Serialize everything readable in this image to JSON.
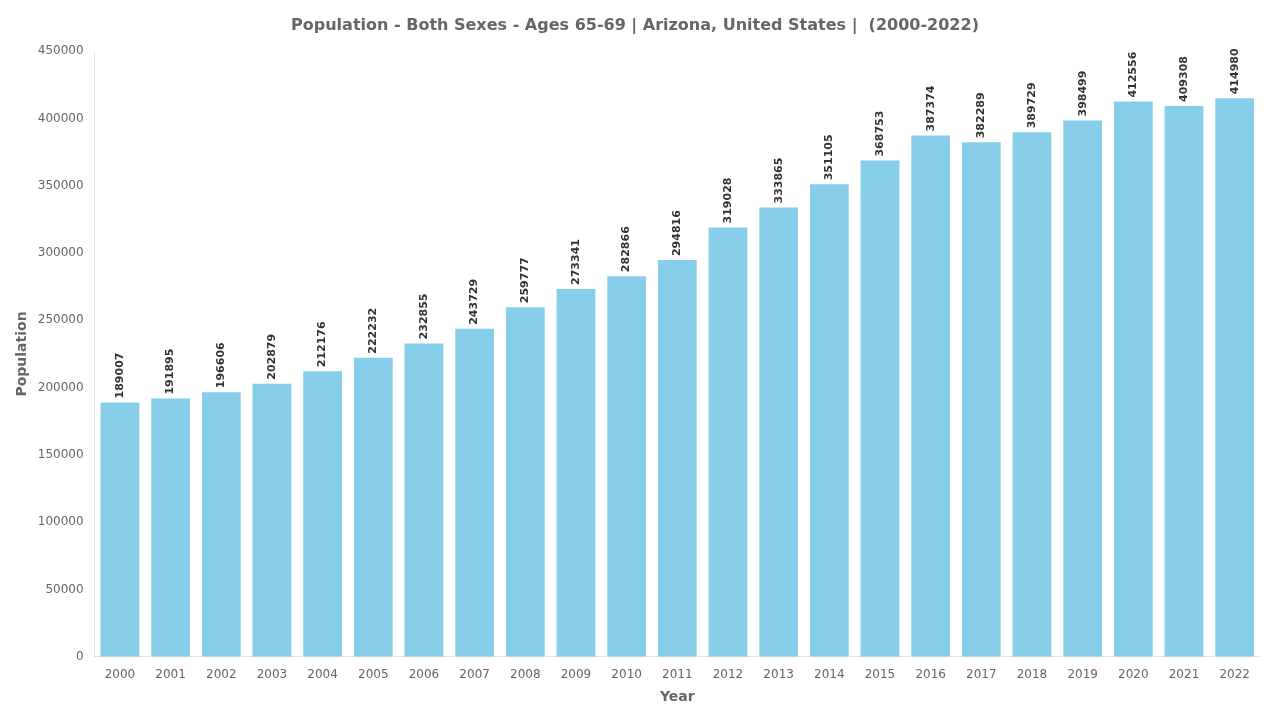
{
  "chart_data": {
    "type": "bar",
    "title": "Population - Both Sexes - Ages 65-69 | Arizona, United States |  (2000-2022)",
    "x_label": "Year",
    "y_label": "Population",
    "categories": [
      "2000",
      "2001",
      "2002",
      "2003",
      "2004",
      "2005",
      "2006",
      "2007",
      "2008",
      "2009",
      "2010",
      "2011",
      "2012",
      "2013",
      "2014",
      "2015",
      "2016",
      "2017",
      "2018",
      "2019",
      "2020",
      "2021",
      "2022"
    ],
    "values": [
      189007,
      191895,
      196606,
      202879,
      212176,
      222232,
      232855,
      243729,
      259777,
      273341,
      282866,
      294816,
      319028,
      333865,
      351105,
      368753,
      387374,
      382289,
      389729,
      398499,
      412556,
      409308,
      414980
    ],
    "color": "#87CEEB",
    "ylim": [
      0,
      450000
    ],
    "yticks": [
      0,
      50000,
      100000,
      150000,
      200000,
      250000,
      300000,
      350000,
      400000,
      450000
    ],
    "grid": false,
    "data_labels": true
  }
}
